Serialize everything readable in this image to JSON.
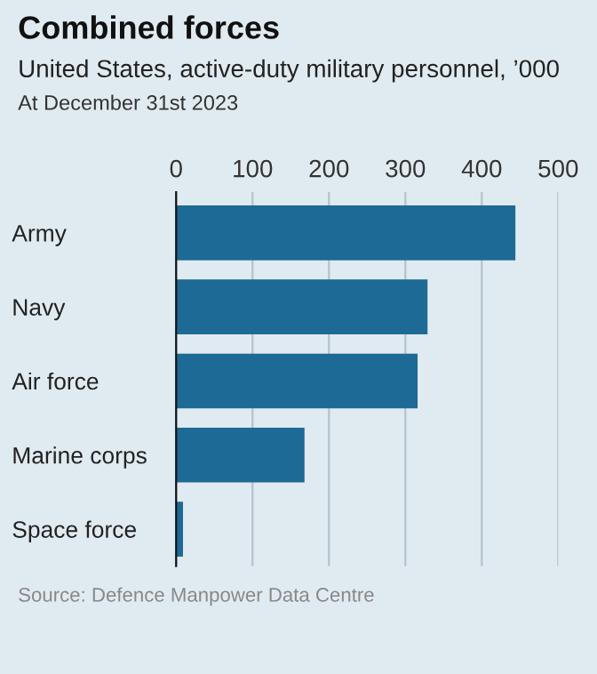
{
  "chart_data": {
    "type": "bar",
    "orientation": "horizontal",
    "title": "Combined forces",
    "subtitle": "United States, active-duty military personnel, ’000",
    "annotations": [
      "At December 31st 2023",
      "Source: Defence Manpower Data Centre"
    ],
    "categories": [
      "Army",
      "Navy",
      "Air force",
      "Marine corps",
      "Space force"
    ],
    "values": [
      444,
      329,
      316,
      168,
      9
    ],
    "color": "#1d6a96",
    "xlim": [
      0,
      500
    ],
    "xticks": [
      0,
      100,
      200,
      300,
      400,
      500
    ],
    "grid": "x"
  }
}
